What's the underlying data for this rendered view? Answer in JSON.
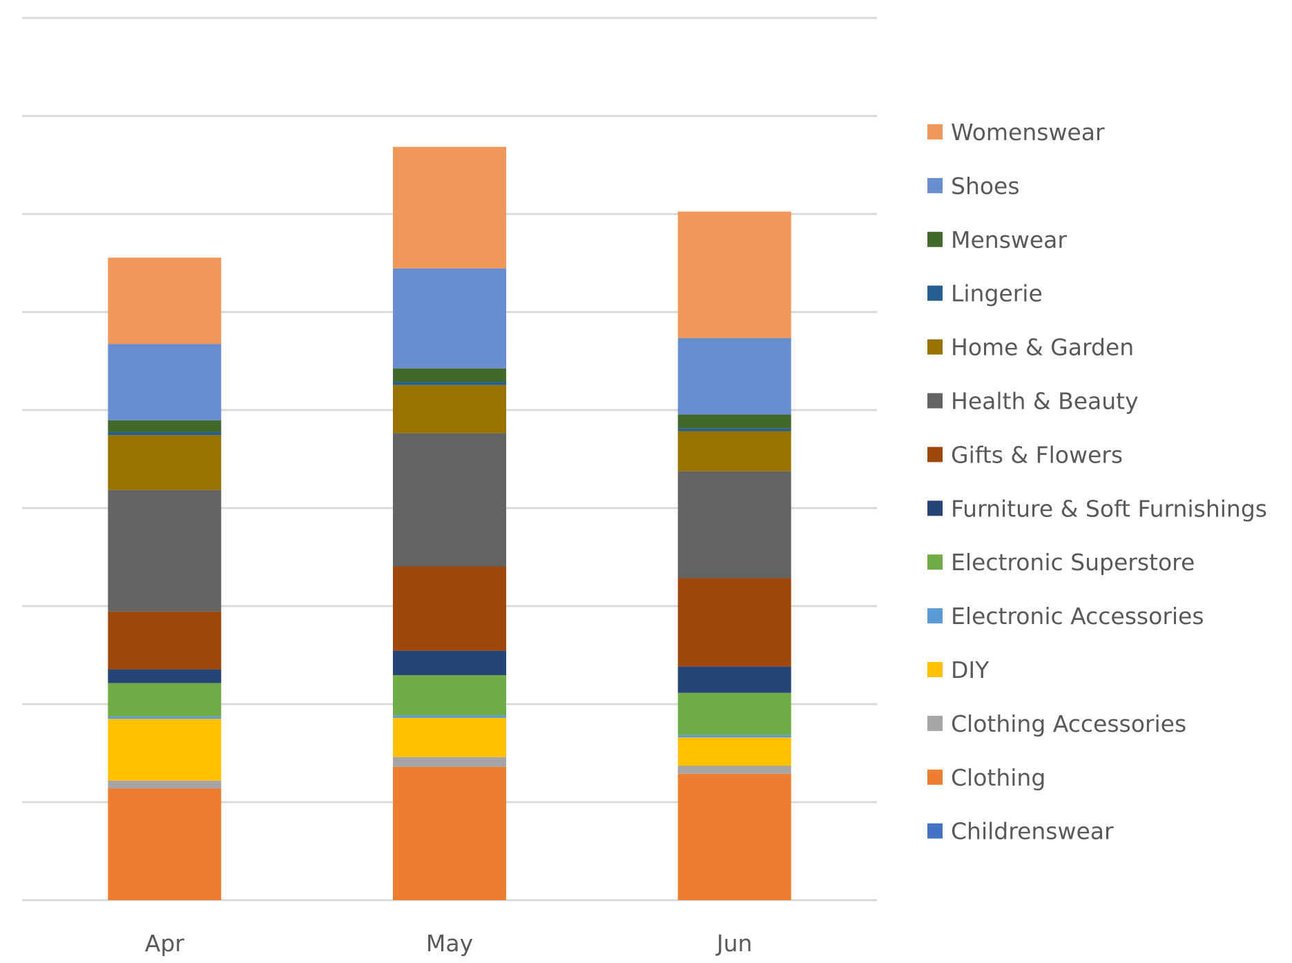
{
  "chart_data": {
    "type": "bar",
    "stacked": true,
    "categories": [
      "Apr",
      "May",
      "Jun"
    ],
    "ylim": [
      0,
      9
    ],
    "y_tick_labels_shown": false,
    "grid": true,
    "legend_position": "right",
    "series": [
      {
        "name": "Childrenswear",
        "color": "#4472C4",
        "values": [
          0,
          0,
          0
        ]
      },
      {
        "name": "Clothing",
        "color": "#ED7D31",
        "values": [
          1.14,
          1.36,
          1.29
        ]
      },
      {
        "name": "Clothing Accessories",
        "color": "#A5A5A5",
        "values": [
          0.08,
          0.1,
          0.08
        ]
      },
      {
        "name": "DIY",
        "color": "#FFC000",
        "values": [
          0.63,
          0.4,
          0.29
        ]
      },
      {
        "name": "Electronic Accessories",
        "color": "#5B9BD5",
        "values": [
          0.025,
          0.025,
          0.025
        ]
      },
      {
        "name": "Electronic Superstore",
        "color": "#70AD47",
        "values": [
          0.34,
          0.41,
          0.43
        ]
      },
      {
        "name": "Furniture & Soft Furnishings",
        "color": "#264478",
        "values": [
          0.14,
          0.25,
          0.27
        ]
      },
      {
        "name": "Gifts & Flowers",
        "color": "#9E480E",
        "values": [
          0.59,
          0.86,
          0.9
        ]
      },
      {
        "name": "Health & Beauty",
        "color": "#636363",
        "values": [
          1.24,
          1.36,
          1.09
        ]
      },
      {
        "name": "Home & Garden",
        "color": "#997300",
        "values": [
          0.56,
          0.49,
          0.41
        ]
      },
      {
        "name": "Lingerie",
        "color": "#255E91",
        "values": [
          0.03,
          0.03,
          0.03
        ]
      },
      {
        "name": "Menswear",
        "color": "#43682B",
        "values": [
          0.12,
          0.14,
          0.14
        ]
      },
      {
        "name": "Shoes",
        "color": "#698ED0",
        "values": [
          0.78,
          1.02,
          0.78
        ]
      },
      {
        "name": "Womenswear",
        "color": "#F1975A",
        "values": [
          0.88,
          1.24,
          1.29
        ]
      }
    ]
  }
}
